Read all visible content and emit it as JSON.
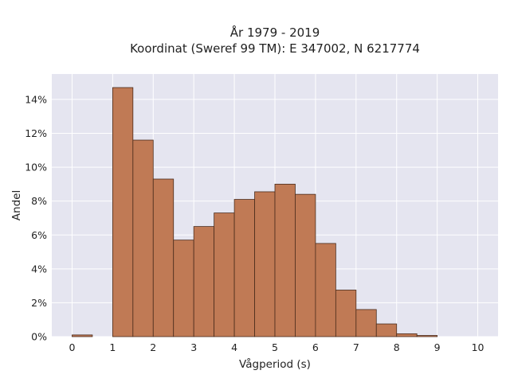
{
  "chart_data": {
    "type": "bar",
    "title": [
      "År 1979 - 2019",
      "Koordinat (Sweref 99 TM): E 347002, N 6217774"
    ],
    "xlabel": "Vågperiod (s)",
    "ylabel": "Andel",
    "bin_width": 0.5,
    "bins": [
      {
        "x0": 0.0,
        "value": 0.1
      },
      {
        "x0": 0.5,
        "value": 0.0
      },
      {
        "x0": 1.0,
        "value": 14.7
      },
      {
        "x0": 1.5,
        "value": 11.6
      },
      {
        "x0": 2.0,
        "value": 9.3
      },
      {
        "x0": 2.5,
        "value": 5.7
      },
      {
        "x0": 3.0,
        "value": 6.5
      },
      {
        "x0": 3.5,
        "value": 7.3
      },
      {
        "x0": 4.0,
        "value": 8.1
      },
      {
        "x0": 4.5,
        "value": 8.55
      },
      {
        "x0": 5.0,
        "value": 9.0
      },
      {
        "x0": 5.5,
        "value": 8.4
      },
      {
        "x0": 6.0,
        "value": 5.5
      },
      {
        "x0": 6.5,
        "value": 2.75
      },
      {
        "x0": 7.0,
        "value": 1.6
      },
      {
        "x0": 7.5,
        "value": 0.75
      },
      {
        "x0": 8.0,
        "value": 0.17
      },
      {
        "x0": 8.5,
        "value": 0.07
      },
      {
        "x0": 9.0,
        "value": 0.0
      },
      {
        "x0": 9.5,
        "value": 0.0
      }
    ],
    "xlim": [
      -0.5,
      10.5
    ],
    "ylim": [
      0,
      15.5
    ],
    "xticks": [
      0,
      1,
      2,
      3,
      4,
      5,
      6,
      7,
      8,
      9,
      10
    ],
    "xtick_labels": [
      "0",
      "1",
      "2",
      "3",
      "4",
      "5",
      "6",
      "7",
      "8",
      "9",
      "10"
    ],
    "yticks": [
      0,
      2,
      4,
      6,
      8,
      10,
      12,
      14
    ],
    "ytick_labels": [
      "0%",
      "2%",
      "4%",
      "6%",
      "8%",
      "10%",
      "12%",
      "14%"
    ],
    "grid": true,
    "colors": {
      "bar_fill": "#c07a55",
      "bar_edge": "#4a2c1c",
      "plot_background": "#e5e5f0",
      "grid": "#ffffff"
    }
  }
}
